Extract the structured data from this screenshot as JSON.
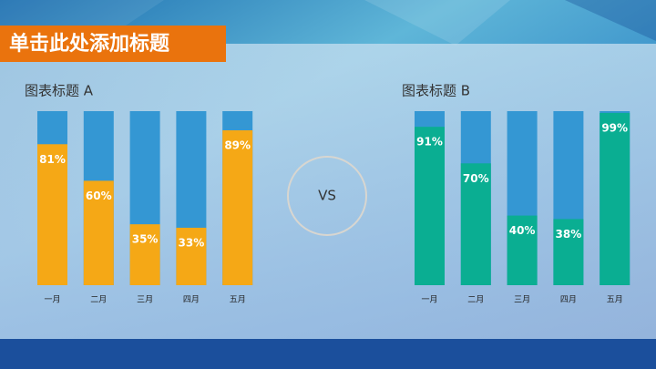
{
  "header": {
    "title": "单击此处添加标题"
  },
  "divider": "VS",
  "chart_data": [
    {
      "type": "bar",
      "title": "图表标题 A",
      "categories": [
        "一月",
        "二月",
        "三月",
        "四月",
        "五月"
      ],
      "values": [
        81,
        60,
        35,
        33,
        89
      ],
      "value_labels": [
        "81%",
        "60%",
        "35%",
        "33%",
        "89%"
      ],
      "color": "#f5a816",
      "track_color": "#3497d3",
      "ylim": [
        0,
        100
      ]
    },
    {
      "type": "bar",
      "title": "图表标题 B",
      "categories": [
        "一月",
        "二月",
        "三月",
        "四月",
        "五月"
      ],
      "values": [
        91,
        70,
        40,
        38,
        99
      ],
      "value_labels": [
        "91%",
        "70%",
        "40%",
        "38%",
        "99%"
      ],
      "color": "#0aae92",
      "track_color": "#3497d3",
      "ylim": [
        0,
        100
      ]
    }
  ]
}
